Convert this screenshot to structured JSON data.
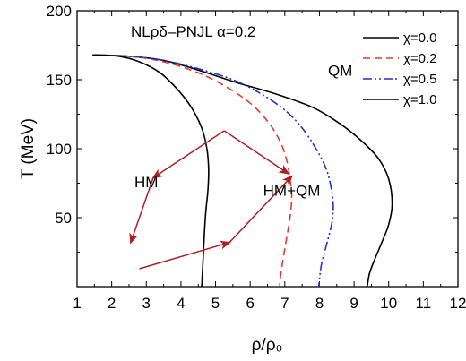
{
  "chart_data": {
    "type": "line",
    "title": "NLρδ–PNJL   α=0.2",
    "xlabel": "ρ/ρ₀",
    "ylabel": "T (MeV)",
    "xlim": [
      1,
      12
    ],
    "ylim": [
      0,
      200
    ],
    "xticks": [
      "1",
      "2",
      "3",
      "4",
      "5",
      "6",
      "7",
      "8",
      "9",
      "10",
      "11",
      "12"
    ],
    "yticks": [
      "50",
      "100",
      "150",
      "200"
    ],
    "legend_position": "top-right",
    "series": [
      {
        "name": "χ=0.0",
        "color": "#000000",
        "dash": "solid",
        "points": [
          [
            1.45,
            168
          ],
          [
            2.5,
            167
          ],
          [
            3.5,
            164
          ],
          [
            4.5,
            157
          ],
          [
            5.6,
            148
          ],
          [
            6.7,
            140
          ],
          [
            7.8,
            130
          ],
          [
            8.6,
            118
          ],
          [
            9.2,
            106
          ],
          [
            9.7,
            93
          ],
          [
            10.0,
            78
          ],
          [
            10.1,
            60
          ],
          [
            10.0,
            45
          ],
          [
            9.8,
            32
          ],
          [
            9.6,
            20
          ],
          [
            9.45,
            10
          ],
          [
            9.38,
            0
          ]
        ]
      },
      {
        "name": "χ=0.2",
        "color": "#e8382f",
        "dash": "dashed",
        "points": [
          [
            1.45,
            168
          ],
          [
            2.5,
            167
          ],
          [
            3.5,
            163
          ],
          [
            4.5,
            155
          ],
          [
            5.3,
            145
          ],
          [
            6.0,
            133
          ],
          [
            6.5,
            120
          ],
          [
            6.85,
            106
          ],
          [
            7.05,
            92
          ],
          [
            7.15,
            78
          ],
          [
            7.2,
            65
          ],
          [
            7.15,
            50
          ],
          [
            7.05,
            35
          ],
          [
            6.95,
            20
          ],
          [
            6.88,
            8
          ],
          [
            6.85,
            0
          ]
        ]
      },
      {
        "name": "χ=0.5",
        "color": "#2233cc",
        "dash": "dashdotdot",
        "points": [
          [
            1.45,
            168
          ],
          [
            2.5,
            167
          ],
          [
            3.5,
            164
          ],
          [
            4.5,
            158
          ],
          [
            5.5,
            150
          ],
          [
            6.3,
            140
          ],
          [
            7.0,
            128
          ],
          [
            7.5,
            115
          ],
          [
            7.9,
            100
          ],
          [
            8.2,
            85
          ],
          [
            8.35,
            70
          ],
          [
            8.4,
            58
          ],
          [
            8.35,
            45
          ],
          [
            8.2,
            30
          ],
          [
            8.05,
            15
          ],
          [
            7.98,
            0
          ]
        ]
      },
      {
        "name": "χ=1.0",
        "color": "#000000",
        "dash": "solid",
        "points": [
          [
            1.45,
            168
          ],
          [
            2.2,
            167
          ],
          [
            2.8,
            163
          ],
          [
            3.4,
            155
          ],
          [
            3.9,
            143
          ],
          [
            4.3,
            130
          ],
          [
            4.6,
            115
          ],
          [
            4.75,
            100
          ],
          [
            4.8,
            85
          ],
          [
            4.78,
            70
          ],
          [
            4.72,
            55
          ],
          [
            4.68,
            40
          ],
          [
            4.65,
            25
          ],
          [
            4.62,
            10
          ],
          [
            4.6,
            0
          ]
        ]
      }
    ],
    "annotations": [
      {
        "text": "HM",
        "x": 3.0,
        "y": 72
      },
      {
        "text": "HM+QM",
        "x": 7.2,
        "y": 66
      },
      {
        "text": "QM",
        "x": 8.6,
        "y": 153
      }
    ],
    "arrows": [
      {
        "from": [
          5.25,
          113
        ],
        "to": [
          3.2,
          79
        ]
      },
      {
        "from": [
          5.25,
          113
        ],
        "to": [
          7.1,
          82
        ]
      },
      {
        "from": [
          3.2,
          79
        ],
        "to": [
          2.55,
          32
        ]
      },
      {
        "from": [
          2.8,
          13
        ],
        "to": [
          5.4,
          32
        ]
      },
      {
        "from": [
          5.4,
          32
        ],
        "to": [
          7.2,
          80
        ]
      }
    ],
    "arrow_color": "#b01e24"
  }
}
